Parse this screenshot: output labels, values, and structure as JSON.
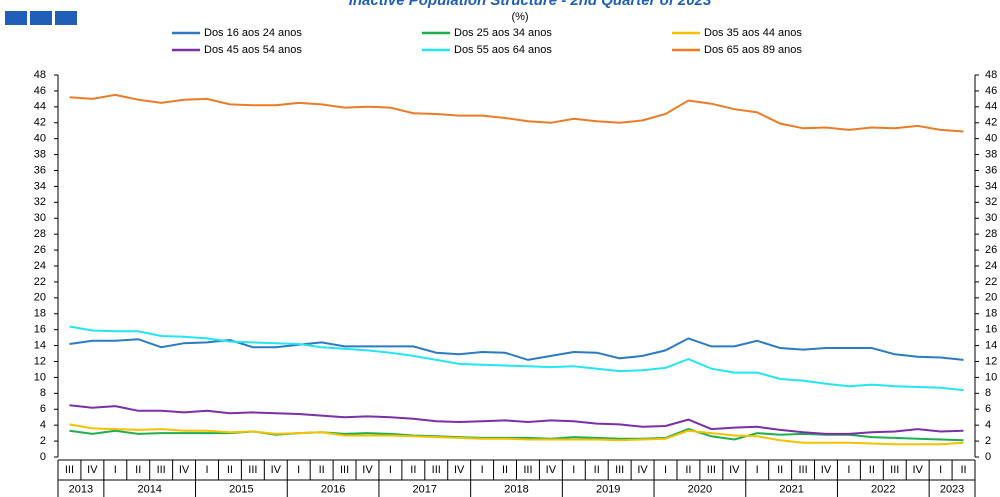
{
  "chart_data": {
    "type": "line",
    "title": "Inactive Population Structure - 2nd Quarter of 2023",
    "subtitle": "(%)",
    "categories": [
      "III",
      "IV",
      "I",
      "II",
      "III",
      "IV",
      "I",
      "II",
      "III",
      "IV",
      "I",
      "II",
      "III",
      "IV",
      "I",
      "II",
      "III",
      "IV",
      "I",
      "II",
      "III",
      "IV",
      "I",
      "II",
      "III",
      "IV",
      "I",
      "II",
      "III",
      "IV",
      "I",
      "II",
      "III",
      "IV",
      "I",
      "II",
      "III",
      "IV",
      "I",
      "II"
    ],
    "years": [
      "2013",
      "2014",
      "2015",
      "2016",
      "2017",
      "2018",
      "2019",
      "2020",
      "2021",
      "2022",
      "2023"
    ],
    "ylim": [
      0,
      48
    ],
    "yticks": [
      0,
      2,
      4,
      6,
      8,
      10,
      12,
      14,
      16,
      18,
      20,
      22,
      24,
      26,
      28,
      30,
      32,
      34,
      36,
      38,
      40,
      42,
      44,
      46,
      48
    ],
    "series": [
      {
        "name": "Dos 16 aos 24 anos",
        "color": "#2a7bc4",
        "values": [
          14.2,
          14.6,
          14.6,
          14.8,
          13.8,
          14.3,
          14.4,
          14.7,
          13.8,
          13.8,
          14.1,
          14.4,
          13.9,
          13.9,
          13.9,
          13.9,
          13.1,
          12.9,
          13.2,
          13.1,
          12.2,
          12.7,
          13.2,
          13.1,
          12.4,
          12.7,
          13.4,
          14.9,
          13.9,
          13.9,
          14.6,
          13.7,
          13.5,
          13.7,
          13.7,
          13.7,
          12.9,
          12.6,
          12.5,
          12.2
        ]
      },
      {
        "name": "Dos 25 aos 34 anos",
        "color": "#1fae4f",
        "values": [
          3.3,
          2.9,
          3.3,
          2.9,
          3.0,
          3.0,
          3.0,
          3.0,
          3.2,
          2.8,
          3.0,
          3.1,
          2.9,
          3.0,
          2.9,
          2.7,
          2.6,
          2.5,
          2.4,
          2.4,
          2.4,
          2.3,
          2.5,
          2.4,
          2.3,
          2.3,
          2.4,
          3.5,
          2.6,
          2.2,
          3.0,
          2.8,
          2.9,
          2.8,
          2.8,
          2.5,
          2.4,
          2.3,
          2.2,
          2.1
        ]
      },
      {
        "name": "Dos 35 aos 44 anos",
        "color": "#f2c200",
        "values": [
          4.1,
          3.6,
          3.5,
          3.4,
          3.5,
          3.3,
          3.3,
          3.1,
          3.2,
          2.9,
          3.0,
          3.1,
          2.7,
          2.7,
          2.7,
          2.6,
          2.5,
          2.4,
          2.3,
          2.3,
          2.2,
          2.2,
          2.2,
          2.2,
          2.1,
          2.2,
          2.3,
          3.3,
          3.0,
          2.7,
          2.6,
          2.1,
          1.8,
          1.8,
          1.8,
          1.7,
          1.6,
          1.6,
          1.6,
          1.8
        ]
      },
      {
        "name": "Dos 45 aos 54 anos",
        "color": "#7b2fa8",
        "values": [
          6.5,
          6.2,
          6.4,
          5.8,
          5.8,
          5.6,
          5.8,
          5.5,
          5.6,
          5.5,
          5.4,
          5.2,
          5.0,
          5.1,
          5.0,
          4.8,
          4.5,
          4.4,
          4.5,
          4.6,
          4.4,
          4.6,
          4.5,
          4.2,
          4.1,
          3.8,
          3.9,
          4.7,
          3.5,
          3.7,
          3.8,
          3.4,
          3.1,
          2.9,
          2.9,
          3.1,
          3.2,
          3.5,
          3.2,
          3.3
        ]
      },
      {
        "name": "Dos 55 aos 64 anos",
        "color": "#22e6f2",
        "values": [
          16.4,
          15.9,
          15.8,
          15.8,
          15.2,
          15.1,
          14.9,
          14.5,
          14.4,
          14.3,
          14.2,
          13.8,
          13.6,
          13.4,
          13.1,
          12.7,
          12.2,
          11.7,
          11.6,
          11.5,
          11.4,
          11.3,
          11.4,
          11.1,
          10.8,
          10.9,
          11.2,
          12.3,
          11.1,
          10.6,
          10.6,
          9.8,
          9.6,
          9.2,
          8.9,
          9.1,
          8.9,
          8.8,
          8.7,
          8.4
        ]
      },
      {
        "name": "Dos 65 aos 89 anos",
        "color": "#ec7b25",
        "values": [
          45.2,
          45.0,
          45.5,
          44.9,
          44.5,
          44.9,
          45.0,
          44.3,
          44.2,
          44.2,
          44.5,
          44.3,
          43.9,
          44.0,
          43.9,
          43.2,
          43.1,
          42.9,
          42.9,
          42.6,
          42.2,
          42.0,
          42.5,
          42.2,
          42.0,
          42.3,
          43.1,
          44.8,
          44.4,
          43.7,
          43.3,
          41.9,
          41.3,
          41.4,
          41.1,
          41.4,
          41.3,
          41.6,
          41.1,
          40.9
        ]
      }
    ]
  }
}
